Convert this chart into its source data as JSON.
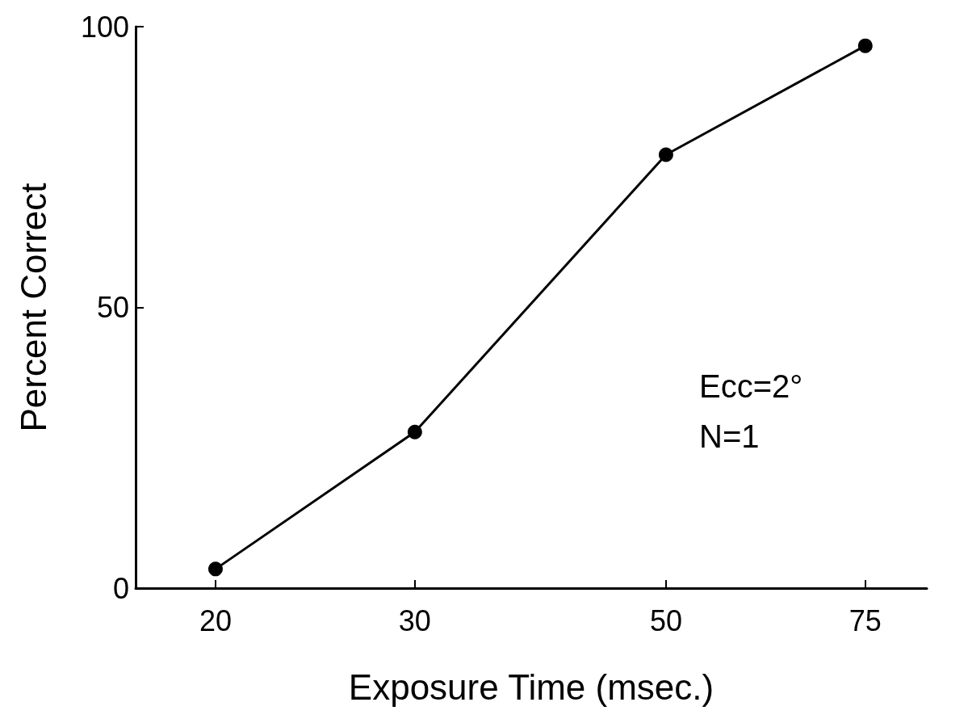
{
  "chart_data": {
    "type": "line",
    "xlabel": "Exposure Time (msec.)",
    "ylabel": "Percent Correct",
    "x": [
      20,
      30,
      50,
      75
    ],
    "series": [
      {
        "color": "#000000",
        "values": [
          3.4,
          27.8,
          77.2,
          96.6
        ]
      }
    ],
    "log": "x",
    "xlim": [
      17,
      85
    ],
    "xticks": [
      20,
      30,
      50,
      75
    ],
    "ylim": [
      0,
      100
    ],
    "yticks": [
      0,
      50,
      100
    ],
    "grid": false,
    "marker": "circle",
    "line_style": "solid",
    "annotations": [
      "Ecc=2°",
      "N=1"
    ]
  }
}
